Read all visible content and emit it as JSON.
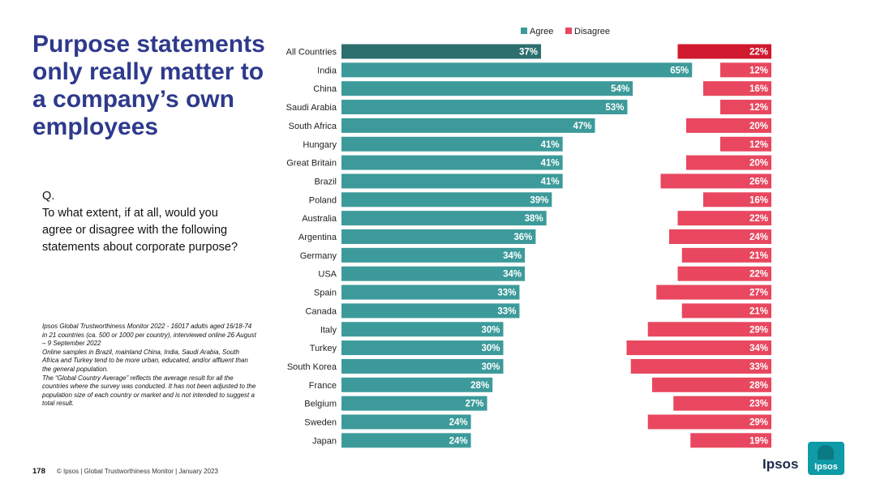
{
  "title": "Purpose statements only really matter to a company’s own employees",
  "question": {
    "prefix": "Q.",
    "text": "To what extent, if at all, would you agree or disagree with the following statements about corporate purpose?"
  },
  "notes": [
    "Ipsos Global Trustworthiness Monitor 2022 - 16017 adults aged 16/18-74 in 21 countries (ca. 500 or 1000 per country), interviewed online 26 August – 9 September 2022",
    "Online samples in Brazil, mainland China, India, Saudi Arabia, South Africa and Turkey tend to be more urban, educated, and/or affluent than the general population.",
    "The “Global Country Average” reflects the average result for all the countries where the survey was conducted. It has not been adjusted to the population size of each country or market and is not intended to suggest a total result."
  ],
  "footer": {
    "page_number": "178",
    "text": "© Ipsos | Global Trustworthiness Monitor | January 2023"
  },
  "logo": {
    "text": "Ipsos",
    "badge_text": "Ipsos"
  },
  "colors": {
    "agree": "#3d9a9a",
    "agree_highlight": "#2d6e6e",
    "disagree": "#e8475f",
    "disagree_highlight": "#d0192e"
  },
  "chart_data": {
    "type": "bar",
    "orientation": "horizontal",
    "legend": [
      "Agree",
      "Disagree"
    ],
    "legend_position": "top",
    "categories": [
      "All Countries",
      "India",
      "China",
      "Saudi Arabia",
      "South Africa",
      "Hungary",
      "Great Britain",
      "Brazil",
      "Poland",
      "Australia",
      "Argentina",
      "Germany",
      "USA",
      "Spain",
      "Canada",
      "Italy",
      "Turkey",
      "South Korea",
      "France",
      "Belgium",
      "Sweden",
      "Japan"
    ],
    "series": [
      {
        "name": "Agree",
        "values": [
          37,
          65,
          54,
          53,
          47,
          41,
          41,
          41,
          39,
          38,
          36,
          34,
          34,
          33,
          33,
          30,
          30,
          30,
          28,
          27,
          24,
          24
        ]
      },
      {
        "name": "Disagree",
        "values": [
          22,
          12,
          16,
          12,
          20,
          12,
          20,
          26,
          16,
          22,
          24,
          21,
          22,
          27,
          21,
          29,
          34,
          33,
          28,
          23,
          29,
          19
        ]
      }
    ],
    "value_format": "{v}%",
    "highlight_category": "All Countries"
  }
}
